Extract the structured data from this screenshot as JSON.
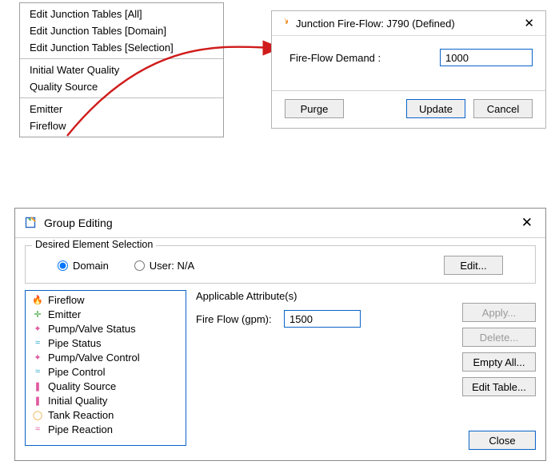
{
  "context_menu": {
    "groups": [
      [
        "Edit Junction Tables [All]",
        "Edit Junction Tables [Domain]",
        "Edit Junction Tables [Selection]"
      ],
      [
        "Initial Water Quality",
        "Quality Source"
      ],
      [
        "Emitter",
        "Fireflow"
      ]
    ]
  },
  "fireflow_dialog": {
    "title": "Junction Fire-Flow: J790 (Defined)",
    "icon_color": "#f08b1d",
    "field_label": "Fire-Flow Demand :",
    "field_value": "1000",
    "buttons": {
      "purge": "Purge",
      "update": "Update",
      "cancel": "Cancel"
    },
    "close_glyph": "✕"
  },
  "arrow": {
    "color": "#d01c1c"
  },
  "group_dialog": {
    "title": "Group Editing",
    "close_glyph": "✕",
    "selection": {
      "legend": "Desired Element Selection",
      "domain_label": "Domain",
      "user_label": "User: N/A",
      "edit_label": "Edit..."
    },
    "list": [
      {
        "label": "Fireflow",
        "icon": "🔥",
        "color": "#f08b1d"
      },
      {
        "label": "Emitter",
        "icon": "✛",
        "color": "#3aa33a"
      },
      {
        "label": "Pump/Valve Status",
        "icon": "✦",
        "color": "#e05aa0"
      },
      {
        "label": "Pipe Status",
        "icon": "≈",
        "color": "#2aa7c9"
      },
      {
        "label": "Pump/Valve Control",
        "icon": "✦",
        "color": "#e05aa0"
      },
      {
        "label": "Pipe Control",
        "icon": "≈",
        "color": "#2aa7c9"
      },
      {
        "label": "Quality Source",
        "icon": "❚",
        "color": "#e05aa0"
      },
      {
        "label": "Initial Quality",
        "icon": "❚",
        "color": "#e05aa0"
      },
      {
        "label": "Tank Reaction",
        "icon": "◯",
        "color": "#f0a030"
      },
      {
        "label": "Pipe Reaction",
        "icon": "≈",
        "color": "#e05aa0"
      }
    ],
    "attrs": {
      "header": "Applicable Attribute(s)",
      "field_label": "Fire Flow (gpm):",
      "field_value": "1500"
    },
    "buttons": {
      "apply": "Apply...",
      "delete": "Delete...",
      "empty_all": "Empty All...",
      "edit_table": "Edit Table...",
      "close": "Close"
    }
  },
  "colors": {
    "focus_border": "#0a63c9",
    "panel_border": "#b4b4b4",
    "button_bg": "#efefef"
  }
}
